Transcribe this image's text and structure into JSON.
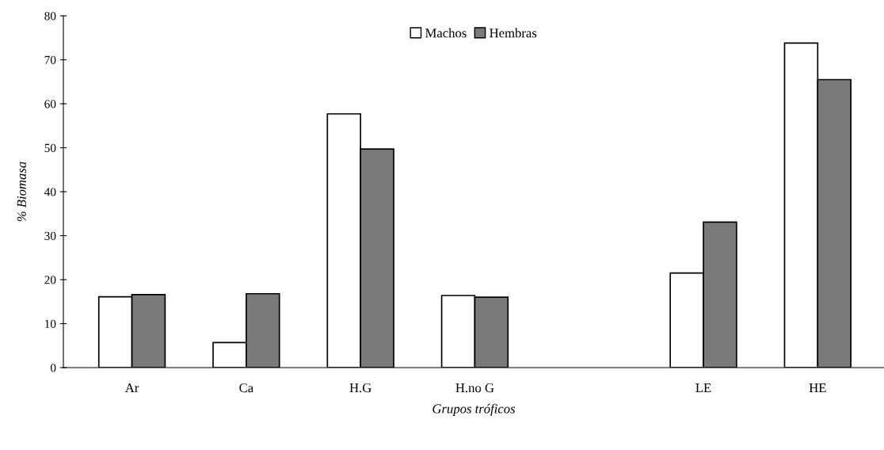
{
  "chart_data": {
    "type": "bar",
    "xlabel": "Grupos tróficos",
    "ylabel": "% Biomasa",
    "categories": [
      "Ar",
      "Ca",
      "H.G",
      "H.no G",
      null,
      "LE",
      "HE"
    ],
    "series": [
      {
        "name": "Machos",
        "color": "#ffffff",
        "values": [
          16.1,
          5.7,
          57.7,
          16.4,
          null,
          21.5,
          73.8
        ]
      },
      {
        "name": "Hembras",
        "color": "#7a7a7a",
        "values": [
          16.6,
          16.8,
          49.7,
          16.0,
          null,
          33.1,
          65.5
        ]
      }
    ],
    "ylim": [
      0,
      80
    ],
    "yticks": [
      0,
      10,
      20,
      30,
      40,
      50,
      60,
      70,
      80
    ],
    "grid": false,
    "legend": "top"
  }
}
